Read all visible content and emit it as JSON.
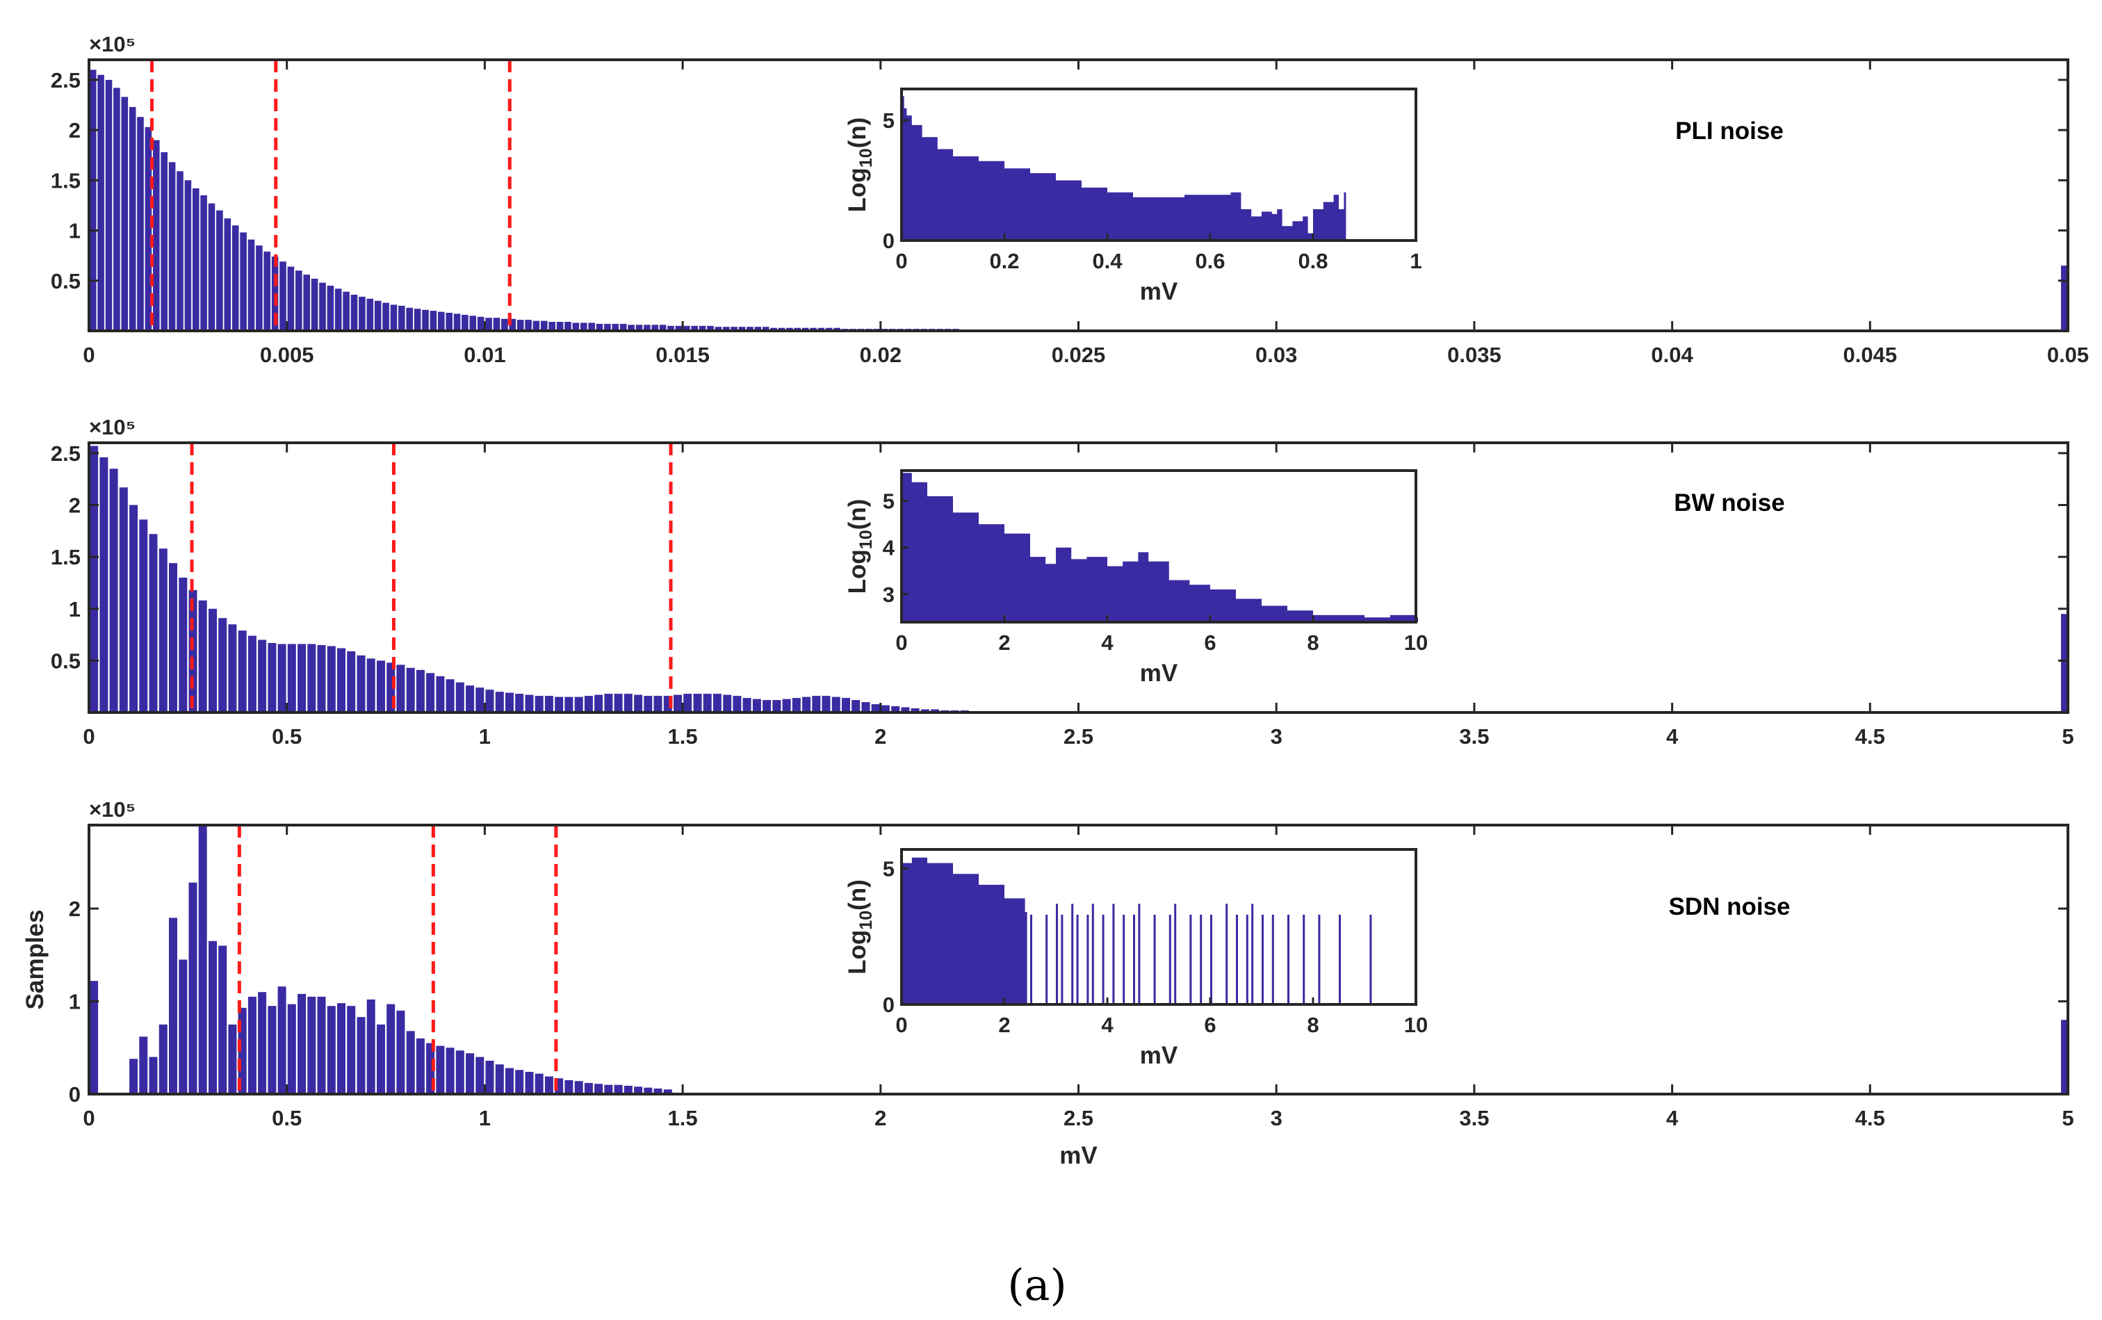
{
  "colors": {
    "bar": "#3a2ba3",
    "threshold": "#ff1a1a",
    "axis": "#262626"
  },
  "caption": "(a)",
  "chart_data": [
    {
      "type": "bar",
      "title": "PLI noise",
      "xlabel": "",
      "ylabel": "",
      "exponent": "×10⁵",
      "xlim": [
        0,
        0.05
      ],
      "ylim": [
        0,
        2.7
      ],
      "x_ticks": [
        0,
        0.005,
        0.01,
        0.015,
        0.02,
        0.025,
        0.03,
        0.035,
        0.04,
        0.045,
        0.05
      ],
      "x_tick_labels": [
        "0",
        "0.005",
        "0.01",
        "0.015",
        "0.02",
        "0.025",
        "0.03",
        "0.035",
        "0.04",
        "0.045",
        "0.05"
      ],
      "y_ticks": [
        0.5,
        1,
        1.5,
        2,
        2.5
      ],
      "y_tick_labels": [
        "0.5",
        "1",
        "1.5",
        "2",
        "2.5"
      ],
      "bin_width": 0.0002,
      "values": [
        2.6,
        2.55,
        2.5,
        2.42,
        2.33,
        2.23,
        2.13,
        2.03,
        1.9,
        1.78,
        1.68,
        1.59,
        1.5,
        1.42,
        1.35,
        1.27,
        1.2,
        1.12,
        1.05,
        0.98,
        0.91,
        0.85,
        0.79,
        0.74,
        0.69,
        0.64,
        0.6,
        0.56,
        0.52,
        0.48,
        0.45,
        0.42,
        0.39,
        0.36,
        0.34,
        0.32,
        0.3,
        0.28,
        0.26,
        0.25,
        0.23,
        0.22,
        0.21,
        0.2,
        0.19,
        0.18,
        0.17,
        0.16,
        0.15,
        0.14,
        0.13,
        0.13,
        0.12,
        0.12,
        0.11,
        0.11,
        0.1,
        0.1,
        0.09,
        0.09,
        0.09,
        0.08,
        0.08,
        0.08,
        0.07,
        0.07,
        0.07,
        0.07,
        0.06,
        0.06,
        0.06,
        0.06,
        0.06,
        0.05,
        0.05,
        0.05,
        0.05,
        0.05,
        0.05,
        0.04,
        0.04,
        0.04,
        0.04,
        0.04,
        0.04,
        0.04,
        0.03,
        0.03,
        0.03,
        0.03,
        0.03,
        0.03,
        0.03,
        0.03,
        0.03,
        0.02,
        0.02,
        0.02,
        0.02,
        0.02,
        0.02,
        0.02,
        0.02,
        0.02,
        0.02,
        0.02,
        0.02,
        0.02,
        0.02,
        0.02,
        0.01,
        0.01,
        0.01,
        0.01,
        0.01,
        0.01,
        0.01,
        0.01,
        0.01,
        0.01
      ],
      "overflow_bar": 0.65,
      "thresholds": [
        0.00159,
        0.00472,
        0.01063
      ],
      "inset": {
        "xlabel": "mV",
        "ylabel": "Log10(n)",
        "xlim": [
          0,
          1
        ],
        "ylim": [
          0,
          6.3
        ],
        "x_ticks": [
          0,
          0.2,
          0.4,
          0.6,
          0.8,
          1
        ],
        "x_tick_labels": [
          "0",
          "0.2",
          "0.4",
          "0.6",
          "0.8",
          "1"
        ],
        "y_ticks": [
          0,
          5
        ],
        "y_tick_labels": [
          "0",
          "5"
        ],
        "x": [
          0,
          0.005,
          0.01,
          0.02,
          0.04,
          0.07,
          0.1,
          0.15,
          0.2,
          0.25,
          0.3,
          0.35,
          0.4,
          0.45,
          0.5,
          0.55,
          0.6,
          0.64,
          0.66,
          0.68,
          0.7,
          0.72,
          0.73,
          0.74,
          0.76,
          0.78,
          0.79,
          0.8,
          0.82,
          0.84,
          0.85,
          0.86
        ],
        "y": [
          6.0,
          5.5,
          5.2,
          4.8,
          4.3,
          3.8,
          3.5,
          3.3,
          3.0,
          2.8,
          2.5,
          2.2,
          2.0,
          1.8,
          1.8,
          1.9,
          1.9,
          2.0,
          1.3,
          1.0,
          1.2,
          1.1,
          1.3,
          0.6,
          0.8,
          1.0,
          0.3,
          1.3,
          1.6,
          1.9,
          1.3,
          2.0
        ]
      }
    },
    {
      "type": "bar",
      "title": "BW noise",
      "xlabel": "",
      "ylabel": "",
      "exponent": "×10⁵",
      "xlim": [
        0,
        5
      ],
      "ylim": [
        0,
        2.6
      ],
      "x_ticks": [
        0,
        0.5,
        1,
        1.5,
        2,
        2.5,
        3,
        3.5,
        4,
        4.5,
        5
      ],
      "x_tick_labels": [
        "0",
        "0.5",
        "1",
        "1.5",
        "2",
        "2.5",
        "3",
        "3.5",
        "4",
        "4.5",
        "5"
      ],
      "y_ticks": [
        0.5,
        1,
        1.5,
        2,
        2.5
      ],
      "y_tick_labels": [
        "0.5",
        "1",
        "1.5",
        "2",
        "2.5"
      ],
      "bin_width": 0.025,
      "values": [
        2.57,
        2.46,
        2.35,
        2.17,
        2.0,
        1.86,
        1.72,
        1.58,
        1.44,
        1.3,
        1.18,
        1.08,
        1.0,
        0.91,
        0.85,
        0.79,
        0.74,
        0.7,
        0.67,
        0.66,
        0.66,
        0.66,
        0.66,
        0.65,
        0.64,
        0.62,
        0.59,
        0.55,
        0.52,
        0.5,
        0.48,
        0.46,
        0.43,
        0.41,
        0.38,
        0.35,
        0.32,
        0.29,
        0.26,
        0.24,
        0.22,
        0.2,
        0.19,
        0.18,
        0.17,
        0.16,
        0.16,
        0.15,
        0.15,
        0.15,
        0.16,
        0.17,
        0.18,
        0.18,
        0.18,
        0.17,
        0.16,
        0.16,
        0.16,
        0.17,
        0.18,
        0.18,
        0.18,
        0.18,
        0.17,
        0.16,
        0.14,
        0.13,
        0.12,
        0.12,
        0.13,
        0.14,
        0.15,
        0.16,
        0.16,
        0.15,
        0.14,
        0.12,
        0.1,
        0.08,
        0.07,
        0.06,
        0.05,
        0.04,
        0.03,
        0.03,
        0.02,
        0.02,
        0.02,
        0.01,
        0.01,
        0.01,
        0.01,
        0.01
      ],
      "overflow_bar": 0.95,
      "thresholds": [
        0.26,
        0.77,
        1.47
      ],
      "inset": {
        "xlabel": "mV",
        "ylabel": "Log10(n)",
        "xlim": [
          0,
          10
        ],
        "ylim": [
          2.4,
          5.65
        ],
        "x_ticks": [
          0,
          2,
          4,
          6,
          8,
          10
        ],
        "x_tick_labels": [
          "0",
          "2",
          "4",
          "6",
          "8",
          "10"
        ],
        "y_ticks": [
          3,
          4,
          5
        ],
        "y_tick_labels": [
          "3",
          "4",
          "5"
        ],
        "x": [
          0,
          0.2,
          0.5,
          1,
          1.5,
          2,
          2.5,
          2.8,
          3.0,
          3.3,
          3.6,
          4,
          4.3,
          4.6,
          4.8,
          5.2,
          5.6,
          6,
          6.5,
          7,
          7.5,
          8,
          8.5,
          9,
          9.5,
          10
        ],
        "y": [
          5.6,
          5.4,
          5.1,
          4.75,
          4.5,
          4.3,
          3.8,
          3.65,
          4.0,
          3.75,
          3.8,
          3.6,
          3.7,
          3.9,
          3.7,
          3.3,
          3.2,
          3.1,
          2.9,
          2.75,
          2.65,
          2.55,
          2.55,
          2.5,
          2.55,
          2.5
        ]
      }
    },
    {
      "type": "bar",
      "title": "SDN noise",
      "xlabel": "mV",
      "ylabel": "Samples",
      "exponent": "×10⁵",
      "xlim": [
        0,
        5
      ],
      "ylim": [
        0,
        2.9
      ],
      "x_ticks": [
        0,
        0.5,
        1,
        1.5,
        2,
        2.5,
        3,
        3.5,
        4,
        4.5,
        5
      ],
      "x_tick_labels": [
        "0",
        "0.5",
        "1",
        "1.5",
        "2",
        "2.5",
        "3",
        "3.5",
        "4",
        "4.5",
        "5"
      ],
      "y_ticks": [
        0,
        1,
        2
      ],
      "y_tick_labels": [
        "0",
        "1",
        "2"
      ],
      "bin_width": 0.025,
      "values": [
        1.22,
        0,
        0,
        0,
        0.38,
        0.62,
        0.4,
        0.75,
        1.9,
        1.45,
        2.28,
        2.95,
        1.65,
        1.6,
        0.75,
        0.93,
        1.05,
        1.1,
        0.95,
        1.16,
        0.97,
        1.08,
        1.05,
        1.05,
        0.95,
        0.98,
        0.95,
        0.83,
        1.02,
        0.75,
        0.97,
        0.9,
        0.68,
        0.6,
        0.55,
        0.52,
        0.5,
        0.47,
        0.44,
        0.4,
        0.36,
        0.32,
        0.28,
        0.26,
        0.24,
        0.22,
        0.19,
        0.17,
        0.15,
        0.14,
        0.12,
        0.11,
        0.1,
        0.1,
        0.09,
        0.08,
        0.07,
        0.06,
        0.05
      ],
      "overflow_bar": 0.8,
      "thresholds": [
        0.38,
        0.87,
        1.18
      ],
      "inset": {
        "xlabel": "mV",
        "ylabel": "Log10(n)",
        "xlim": [
          0,
          10
        ],
        "ylim": [
          0,
          5.7
        ],
        "x_ticks": [
          0,
          2,
          4,
          6,
          8,
          10
        ],
        "x_tick_labels": [
          "0",
          "2",
          "4",
          "6",
          "8",
          "10"
        ],
        "y_ticks": [
          0,
          5
        ],
        "y_tick_labels": [
          "0",
          "5"
        ],
        "x": [
          0,
          0.2,
          0.5,
          1,
          1.5,
          2,
          2.4
        ],
        "y": [
          5.2,
          5.4,
          5.2,
          4.8,
          4.4,
          3.9,
          3.4
        ],
        "spikes_x": [
          2.5,
          2.8,
          3.0,
          3.1,
          3.3,
          3.4,
          3.6,
          3.7,
          3.9,
          4.1,
          4.3,
          4.5,
          4.6,
          4.9,
          5.2,
          5.3,
          5.6,
          5.8,
          6.0,
          6.3,
          6.5,
          6.7,
          6.8,
          7.0,
          7.2,
          7.5,
          7.8,
          8.1,
          8.5,
          9.1
        ],
        "spikes_y": [
          3.3,
          3.3,
          3.7,
          3.3,
          3.7,
          3.3,
          3.3,
          3.7,
          3.3,
          3.7,
          3.3,
          3.3,
          3.7,
          3.3,
          3.3,
          3.7,
          3.3,
          3.3,
          3.3,
          3.7,
          3.3,
          3.3,
          3.7,
          3.3,
          3.3,
          3.3,
          3.3,
          3.3,
          3.3,
          3.3
        ]
      }
    }
  ]
}
